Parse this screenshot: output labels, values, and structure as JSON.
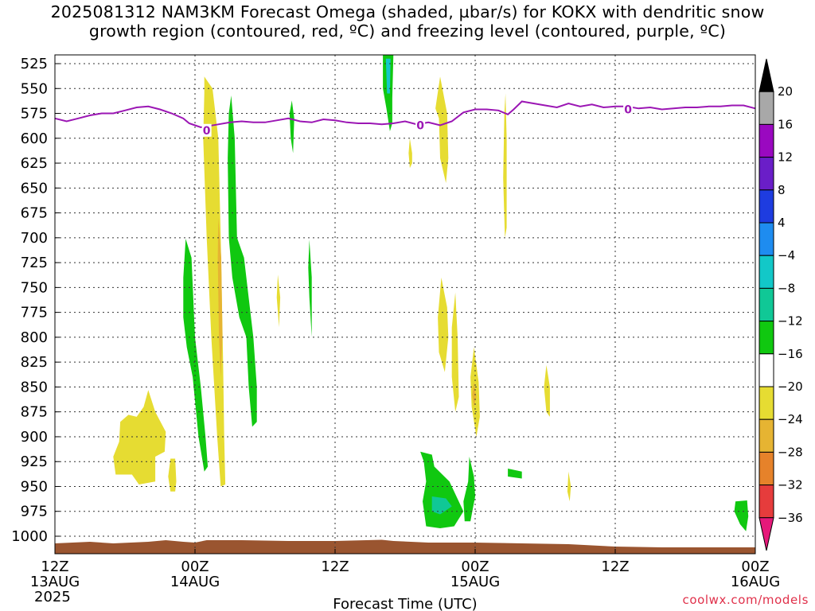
{
  "title": {
    "line1": "2025081312 NAM3KM Forecast Omega (shaded, µbar/s) for KOKX with dendritic snow",
    "line2": "growth region (contoured, red, ºC) and freezing level (contoured, purple, ºC)"
  },
  "credit": "coolwx.com/models",
  "chart_data": {
    "type": "heatmap",
    "title": "2025081312 NAM3KM Forecast Omega (shaded, µbar/s) for KOKX with dendritic snow growth region (contoured, red, ºC) and freezing level (contoured, purple, ºC)",
    "xlabel": "Forecast Time (UTC)",
    "ylabel": "",
    "x_range_hours": [
      0,
      60
    ],
    "y_range_hPa": [
      520,
      1010
    ],
    "y_inverted": true,
    "grid": true,
    "x_ticks": [
      {
        "hour": 0,
        "lines": [
          "12Z",
          "13AUG",
          "2025"
        ]
      },
      {
        "hour": 12,
        "lines": [
          "00Z",
          "14AUG"
        ]
      },
      {
        "hour": 24,
        "lines": [
          "12Z"
        ]
      },
      {
        "hour": 36,
        "lines": [
          "00Z",
          "15AUG"
        ]
      },
      {
        "hour": 48,
        "lines": [
          "12Z"
        ]
      },
      {
        "hour": 60,
        "lines": [
          "00Z",
          "16AUG"
        ]
      }
    ],
    "y_ticks": [
      525,
      550,
      575,
      600,
      625,
      650,
      675,
      700,
      725,
      750,
      775,
      800,
      825,
      850,
      875,
      900,
      925,
      950,
      975,
      1000
    ],
    "colorbar": {
      "levels": [
        -36,
        -32,
        -28,
        -24,
        -20,
        -16,
        -12,
        -8,
        -4,
        4,
        8,
        12,
        16,
        20
      ],
      "colors": [
        "#000000",
        "#a8a8a8",
        "#9a09c0",
        "#6a1ec8",
        "#1e3ce0",
        "#1e8cf0",
        "#12c8c8",
        "#10c896",
        "#10c810",
        "#ffffff",
        "#e6dc32",
        "#e6b432",
        "#e6822a",
        "#e63c3c",
        "#e6197a"
      ]
    },
    "freezing_level": {
      "label": "0",
      "color": "#9b16b4",
      "points": [
        [
          0,
          580
        ],
        [
          1,
          583
        ],
        [
          2,
          580
        ],
        [
          3,
          577
        ],
        [
          4,
          575
        ],
        [
          5,
          575
        ],
        [
          6,
          572
        ],
        [
          7,
          569
        ],
        [
          8,
          568
        ],
        [
          9,
          571
        ],
        [
          10,
          575
        ],
        [
          11,
          580
        ],
        [
          11.5,
          585
        ],
        [
          12,
          587
        ],
        [
          12.5,
          589
        ],
        [
          13,
          588
        ],
        [
          14,
          586
        ],
        [
          15,
          584
        ],
        [
          16,
          583
        ],
        [
          17,
          584
        ],
        [
          18,
          584
        ],
        [
          19,
          582
        ],
        [
          20,
          580
        ],
        [
          21,
          583
        ],
        [
          22,
          584
        ],
        [
          23,
          581
        ],
        [
          24,
          582
        ],
        [
          25,
          584
        ],
        [
          26,
          585
        ],
        [
          27,
          585
        ],
        [
          28,
          586
        ],
        [
          29,
          585
        ],
        [
          30,
          583
        ],
        [
          31,
          586
        ],
        [
          32,
          584
        ],
        [
          33,
          587
        ],
        [
          34,
          583
        ],
        [
          35,
          574
        ],
        [
          36,
          571
        ],
        [
          37,
          571
        ],
        [
          38,
          572
        ],
        [
          38.8,
          576
        ],
        [
          39.3,
          571
        ],
        [
          40,
          563
        ],
        [
          41,
          565
        ],
        [
          42,
          567
        ],
        [
          43,
          569
        ],
        [
          44,
          565
        ],
        [
          45,
          568
        ],
        [
          46,
          566
        ],
        [
          47,
          569
        ],
        [
          48,
          568
        ],
        [
          49,
          568
        ],
        [
          50,
          570
        ],
        [
          51,
          569
        ],
        [
          52,
          571
        ],
        [
          53,
          570
        ],
        [
          54,
          569
        ],
        [
          55,
          569
        ],
        [
          56,
          568
        ],
        [
          57,
          568
        ],
        [
          58,
          567
        ],
        [
          59,
          567
        ],
        [
          60,
          570
        ]
      ],
      "label_positions": [
        [
          13,
          592
        ],
        [
          31.3,
          587
        ],
        [
          49.1,
          571
        ]
      ]
    },
    "omega_regions": [
      {
        "color": "#e6dc32",
        "points": [
          [
            12.8,
            538
          ],
          [
            13.5,
            550
          ],
          [
            14,
            600
          ],
          [
            14.2,
            700
          ],
          [
            14.4,
            820
          ],
          [
            14.5,
            900
          ],
          [
            14.6,
            948
          ],
          [
            14.2,
            950
          ],
          [
            13.9,
            900
          ],
          [
            13.4,
            800
          ],
          [
            13.0,
            700
          ],
          [
            12.7,
            600
          ],
          [
            12.8,
            555
          ]
        ]
      },
      {
        "color": "#e6b432",
        "points": [
          [
            14.0,
            680
          ],
          [
            14.25,
            720
          ],
          [
            14.35,
            800
          ],
          [
            14.2,
            840
          ],
          [
            14.05,
            800
          ],
          [
            13.95,
            720
          ]
        ]
      },
      {
        "color": "#10c810",
        "points": [
          [
            15.1,
            557
          ],
          [
            15.4,
            600
          ],
          [
            15.6,
            700
          ],
          [
            16.2,
            720
          ],
          [
            16.7,
            770
          ],
          [
            17.0,
            800
          ],
          [
            17.3,
            850
          ],
          [
            17.3,
            885
          ],
          [
            16.9,
            890
          ],
          [
            16.6,
            850
          ],
          [
            16.4,
            800
          ],
          [
            15.8,
            780
          ],
          [
            15.2,
            740
          ],
          [
            14.9,
            700
          ],
          [
            14.8,
            620
          ],
          [
            14.9,
            575
          ]
        ]
      },
      {
        "color": "#10c810",
        "points": [
          [
            11.2,
            701
          ],
          [
            11.7,
            720
          ],
          [
            12.0,
            800
          ],
          [
            12.5,
            850
          ],
          [
            12.9,
            900
          ],
          [
            13.1,
            930
          ],
          [
            12.8,
            935
          ],
          [
            12.3,
            900
          ],
          [
            11.8,
            840
          ],
          [
            11.3,
            810
          ],
          [
            11.0,
            780
          ],
          [
            11.0,
            740
          ]
        ]
      },
      {
        "color": "#e6dc32",
        "points": [
          [
            8.0,
            853
          ],
          [
            8.6,
            875
          ],
          [
            9.5,
            895
          ],
          [
            9.4,
            915
          ],
          [
            8.6,
            920
          ],
          [
            8.6,
            945
          ],
          [
            7.2,
            948
          ],
          [
            6.6,
            938
          ],
          [
            5.2,
            938
          ],
          [
            5.0,
            920
          ],
          [
            5.5,
            905
          ],
          [
            5.6,
            885
          ],
          [
            6.3,
            878
          ],
          [
            7.0,
            880
          ],
          [
            7.6,
            870
          ]
        ]
      },
      {
        "color": "#e6dc32",
        "points": [
          [
            9.9,
            922
          ],
          [
            10.3,
            922
          ],
          [
            10.4,
            945
          ],
          [
            10.3,
            955
          ],
          [
            9.9,
            955
          ],
          [
            9.7,
            940
          ]
        ]
      },
      {
        "color": "#e6dc32",
        "points": [
          [
            19.1,
            737
          ],
          [
            19.3,
            760
          ],
          [
            19.2,
            790
          ],
          [
            19.0,
            760
          ]
        ]
      },
      {
        "color": "#10c810",
        "points": [
          [
            21.8,
            702
          ],
          [
            22.0,
            740
          ],
          [
            22.0,
            800
          ],
          [
            21.8,
            760
          ],
          [
            21.7,
            730
          ]
        ]
      },
      {
        "color": "#10c810",
        "points": [
          [
            20.3,
            562
          ],
          [
            20.5,
            580
          ],
          [
            20.4,
            615
          ],
          [
            20.2,
            600
          ],
          [
            20.1,
            575
          ]
        ]
      },
      {
        "color": "#10c810",
        "points": [
          [
            28.1,
            515
          ],
          [
            29.0,
            515
          ],
          [
            28.9,
            560
          ],
          [
            28.9,
            585
          ],
          [
            28.7,
            593
          ],
          [
            28.4,
            570
          ],
          [
            28.1,
            550
          ]
        ]
      },
      {
        "color": "#12c8c8",
        "points": [
          [
            28.35,
            520
          ],
          [
            28.75,
            520
          ],
          [
            28.7,
            555
          ],
          [
            28.45,
            555
          ]
        ]
      },
      {
        "color": "#e6dc32",
        "points": [
          [
            33.0,
            538
          ],
          [
            33.6,
            575
          ],
          [
            33.7,
            620
          ],
          [
            33.5,
            645
          ],
          [
            33.0,
            620
          ],
          [
            32.9,
            580
          ],
          [
            32.6,
            570
          ]
        ]
      },
      {
        "color": "#e6dc32",
        "points": [
          [
            30.4,
            600
          ],
          [
            30.6,
            615
          ],
          [
            30.6,
            625
          ],
          [
            30.4,
            630
          ],
          [
            30.3,
            615
          ]
        ]
      },
      {
        "color": "#e6dc32",
        "points": [
          [
            33.1,
            740
          ],
          [
            33.6,
            770
          ],
          [
            33.7,
            800
          ],
          [
            33.4,
            835
          ],
          [
            32.9,
            815
          ],
          [
            32.8,
            780
          ]
        ]
      },
      {
        "color": "#e6dc32",
        "points": [
          [
            34.3,
            755
          ],
          [
            34.5,
            800
          ],
          [
            34.6,
            860
          ],
          [
            34.3,
            875
          ],
          [
            34.0,
            840
          ],
          [
            34.0,
            790
          ]
        ]
      },
      {
        "color": "#e6dc32",
        "points": [
          [
            38.6,
            555
          ],
          [
            38.7,
            600
          ],
          [
            38.7,
            690
          ],
          [
            38.55,
            700
          ],
          [
            38.4,
            640
          ],
          [
            38.5,
            575
          ]
        ]
      },
      {
        "color": "#e6dc32",
        "points": [
          [
            35.9,
            810
          ],
          [
            36.3,
            845
          ],
          [
            36.4,
            880
          ],
          [
            36.1,
            900
          ],
          [
            35.7,
            870
          ],
          [
            35.6,
            840
          ]
        ]
      },
      {
        "color": "#e6b432",
        "points": [
          [
            35.9,
            845
          ],
          [
            36.1,
            860
          ],
          [
            35.9,
            870
          ],
          [
            35.75,
            858
          ]
        ]
      },
      {
        "color": "#e6dc32",
        "points": [
          [
            42.1,
            828
          ],
          [
            42.4,
            850
          ],
          [
            42.4,
            880
          ],
          [
            42.1,
            875
          ],
          [
            41.9,
            850
          ]
        ]
      },
      {
        "color": "#e6dc32",
        "points": [
          [
            44.0,
            935
          ],
          [
            44.2,
            950
          ],
          [
            44.1,
            965
          ],
          [
            43.9,
            955
          ]
        ]
      },
      {
        "color": "#10c810",
        "points": [
          [
            31.3,
            915
          ],
          [
            32.3,
            918
          ],
          [
            32.5,
            930
          ],
          [
            33.8,
            945
          ],
          [
            34.4,
            960
          ],
          [
            35.0,
            975
          ],
          [
            34.2,
            990
          ],
          [
            33.0,
            992
          ],
          [
            31.8,
            990
          ],
          [
            31.5,
            965
          ],
          [
            31.8,
            945
          ],
          [
            31.6,
            925
          ]
        ]
      },
      {
        "color": "#10c810",
        "points": [
          [
            35.5,
            920
          ],
          [
            35.9,
            940
          ],
          [
            36.0,
            960
          ],
          [
            35.6,
            985
          ],
          [
            35.1,
            985
          ],
          [
            35.0,
            965
          ],
          [
            35.4,
            945
          ]
        ]
      },
      {
        "color": "#10c896",
        "points": [
          [
            32.3,
            960
          ],
          [
            33.5,
            962
          ],
          [
            34.0,
            970
          ],
          [
            33.0,
            978
          ],
          [
            32.3,
            975
          ]
        ]
      },
      {
        "color": "#10c810",
        "points": [
          [
            38.8,
            932
          ],
          [
            40.0,
            935
          ],
          [
            40.0,
            942
          ],
          [
            38.8,
            940
          ]
        ]
      },
      {
        "color": "#10c810",
        "points": [
          [
            58.3,
            965
          ],
          [
            59.3,
            964
          ],
          [
            59.4,
            980
          ],
          [
            59.2,
            995
          ],
          [
            58.7,
            988
          ],
          [
            58.2,
            975
          ]
        ]
      }
    ]
  }
}
